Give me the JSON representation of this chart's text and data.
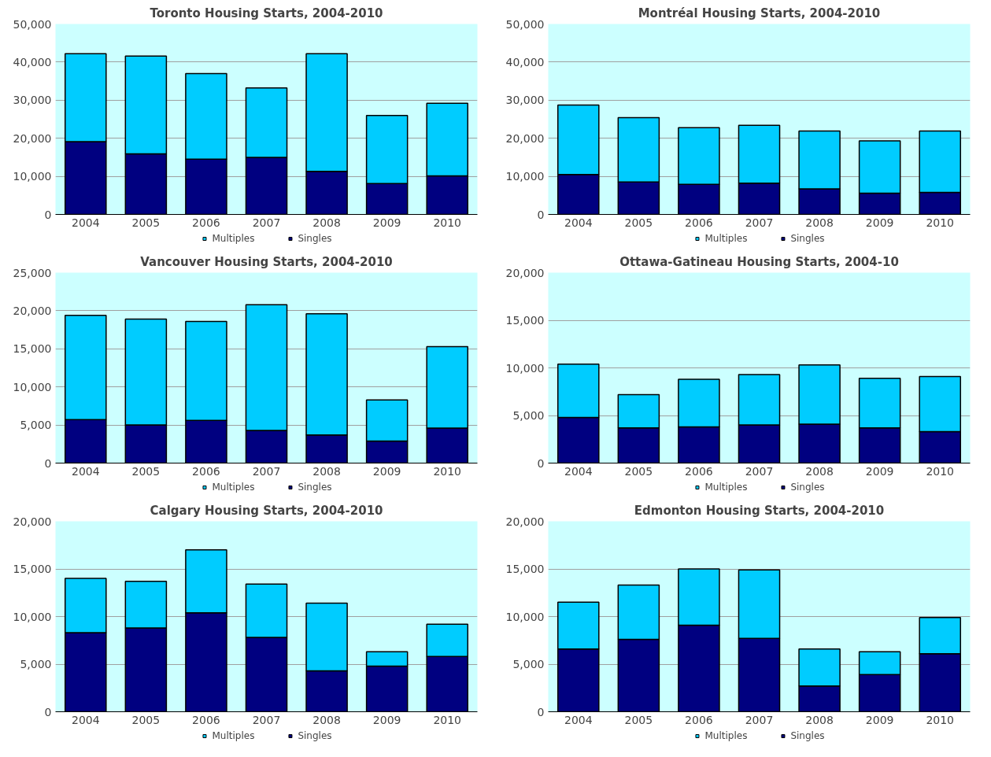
{
  "chart_data": [
    {
      "type": "bar",
      "stacked": true,
      "title": "Toronto Housing Starts, 2004-2010",
      "categories": [
        "2004",
        "2005",
        "2006",
        "2007",
        "2008",
        "2009",
        "2010"
      ],
      "series": [
        {
          "name": "Singles",
          "color": "#000080",
          "values": [
            19100,
            15900,
            14500,
            15000,
            11300,
            8100,
            10100
          ]
        },
        {
          "name": "Multiples",
          "color": "#00ccff",
          "values": [
            23100,
            25700,
            22500,
            18200,
            30900,
            17900,
            19100
          ]
        }
      ],
      "ylim": [
        0,
        50000
      ],
      "yticks": [
        {
          "value": 0,
          "label": "0"
        },
        {
          "value": 10000,
          "label": "10,000"
        },
        {
          "value": 20000,
          "label": "20,000"
        },
        {
          "value": 30000,
          "label": "30,000"
        },
        {
          "value": 40000,
          "label": "40,000"
        },
        {
          "value": 50000,
          "label": "50,000"
        }
      ],
      "grid": "y",
      "legend": "bottom"
    },
    {
      "type": "bar",
      "stacked": true,
      "title": "Montréal Housing Starts, 2004-2010",
      "categories": [
        "2004",
        "2005",
        "2006",
        "2007",
        "2008",
        "2009",
        "2010"
      ],
      "series": [
        {
          "name": "Singles",
          "color": "#000080",
          "values": [
            10500,
            8500,
            7900,
            8200,
            6700,
            5600,
            5800
          ]
        },
        {
          "name": "Multiples",
          "color": "#00ccff",
          "values": [
            18200,
            16900,
            14900,
            15200,
            15200,
            13700,
            16100
          ]
        }
      ],
      "ylim": [
        0,
        50000
      ],
      "yticks": [
        {
          "value": 0,
          "label": "0"
        },
        {
          "value": 10000,
          "label": "10,000"
        },
        {
          "value": 20000,
          "label": "20,000"
        },
        {
          "value": 30000,
          "label": "30,000"
        },
        {
          "value": 40000,
          "label": "40,000"
        },
        {
          "value": 50000,
          "label": "50,000"
        }
      ],
      "grid": "y",
      "legend": "bottom"
    },
    {
      "type": "bar",
      "stacked": true,
      "title": "Vancouver Housing Starts, 2004-2010",
      "categories": [
        "2004",
        "2005",
        "2006",
        "2007",
        "2008",
        "2009",
        "2010"
      ],
      "series": [
        {
          "name": "Singles",
          "color": "#000080",
          "values": [
            5700,
            5000,
            5600,
            4300,
            3700,
            2900,
            4600
          ]
        },
        {
          "name": "Multiples",
          "color": "#00ccff",
          "values": [
            13700,
            13900,
            13000,
            16500,
            15900,
            5400,
            10700
          ]
        }
      ],
      "ylim": [
        0,
        25000
      ],
      "yticks": [
        {
          "value": 0,
          "label": "0"
        },
        {
          "value": 5000,
          "label": "5,000"
        },
        {
          "value": 10000,
          "label": "10,000"
        },
        {
          "value": 15000,
          "label": "15,000"
        },
        {
          "value": 20000,
          "label": "20,000"
        },
        {
          "value": 25000,
          "label": "25,000"
        }
      ],
      "grid": "y",
      "legend": "bottom"
    },
    {
      "type": "bar",
      "stacked": true,
      "title": "Ottawa-Gatineau Housing Starts, 2004-10",
      "categories": [
        "2004",
        "2005",
        "2006",
        "2007",
        "2008",
        "2009",
        "2010"
      ],
      "series": [
        {
          "name": "Singles",
          "color": "#000080",
          "values": [
            4800,
            3700,
            3800,
            4000,
            4100,
            3700,
            3300
          ]
        },
        {
          "name": "Multiples",
          "color": "#00ccff",
          "values": [
            5600,
            3500,
            5000,
            5300,
            6200,
            5200,
            5800
          ]
        }
      ],
      "ylim": [
        0,
        20000
      ],
      "yticks": [
        {
          "value": 0,
          "label": "0"
        },
        {
          "value": 5000,
          "label": "5,000"
        },
        {
          "value": 10000,
          "label": "10,000"
        },
        {
          "value": 15000,
          "label": "15,000"
        },
        {
          "value": 20000,
          "label": "20,000"
        }
      ],
      "grid": "y",
      "legend": "bottom"
    },
    {
      "type": "bar",
      "stacked": true,
      "title": "Calgary Housing Starts, 2004-2010",
      "categories": [
        "2004",
        "2005",
        "2006",
        "2007",
        "2008",
        "2009",
        "2010"
      ],
      "series": [
        {
          "name": "Singles",
          "color": "#000080",
          "values": [
            8300,
            8800,
            10400,
            7800,
            4300,
            4800,
            5800
          ]
        },
        {
          "name": "Multiples",
          "color": "#00ccff",
          "values": [
            5700,
            4900,
            6600,
            5600,
            7100,
            1500,
            3400
          ]
        }
      ],
      "ylim": [
        0,
        20000
      ],
      "yticks": [
        {
          "value": 0,
          "label": "0"
        },
        {
          "value": 5000,
          "label": "5,000"
        },
        {
          "value": 10000,
          "label": "10,000"
        },
        {
          "value": 15000,
          "label": "15,000"
        },
        {
          "value": 20000,
          "label": "20,000"
        }
      ],
      "grid": "y",
      "legend": "bottom"
    },
    {
      "type": "bar",
      "stacked": true,
      "title": "Edmonton Housing Starts, 2004-2010",
      "categories": [
        "2004",
        "2005",
        "2006",
        "2007",
        "2008",
        "2009",
        "2010"
      ],
      "series": [
        {
          "name": "Singles",
          "color": "#000080",
          "values": [
            6600,
            7600,
            9100,
            7700,
            2700,
            3900,
            6100
          ]
        },
        {
          "name": "Multiples",
          "color": "#00ccff",
          "values": [
            4900,
            5700,
            5900,
            7200,
            3900,
            2400,
            3800
          ]
        }
      ],
      "ylim": [
        0,
        20000
      ],
      "yticks": [
        {
          "value": 0,
          "label": "0"
        },
        {
          "value": 5000,
          "label": "5,000"
        },
        {
          "value": 10000,
          "label": "10,000"
        },
        {
          "value": 15000,
          "label": "15,000"
        },
        {
          "value": 20000,
          "label": "20,000"
        }
      ],
      "grid": "y",
      "legend": "bottom"
    }
  ]
}
